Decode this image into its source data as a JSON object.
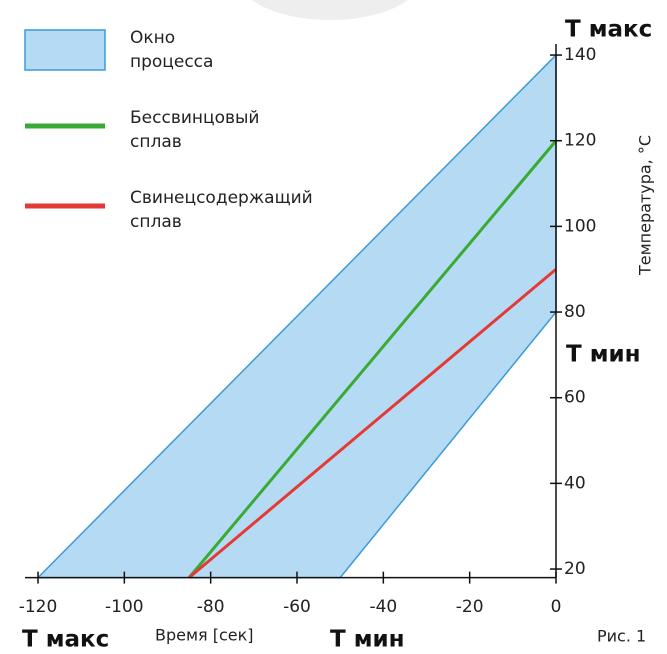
{
  "chart_data": {
    "type": "line",
    "x_label": "Время [сек]",
    "y_label": "Температура, °С",
    "xlim": [
      -120,
      0
    ],
    "ylim": [
      18,
      142
    ],
    "xticks": [
      -120,
      -100,
      -80,
      -60,
      -40,
      -20,
      0
    ],
    "yticks": [
      20,
      40,
      60,
      80,
      100,
      120,
      140
    ],
    "series": [
      {
        "name": "Окно процесса",
        "kind": "area",
        "color": "#b5dbf4",
        "edge_color": "#3b9ad8",
        "x": [
          -120,
          0,
          0,
          -50
        ],
        "values": [
          18,
          140,
          80,
          18
        ]
      },
      {
        "name": "Бессвинцовый сплав",
        "color": "#3aaa35",
        "x": [
          -85,
          0
        ],
        "values": [
          18,
          120
        ]
      },
      {
        "name": "Свинецсодержащий сплав",
        "color": "#e53935",
        "x": [
          -85,
          0
        ],
        "values": [
          18,
          90
        ]
      }
    ],
    "annotations": [
      "Т макс",
      "Т мин",
      "Т макс",
      "Т мин"
    ],
    "figure_label": "Рис. 1"
  }
}
